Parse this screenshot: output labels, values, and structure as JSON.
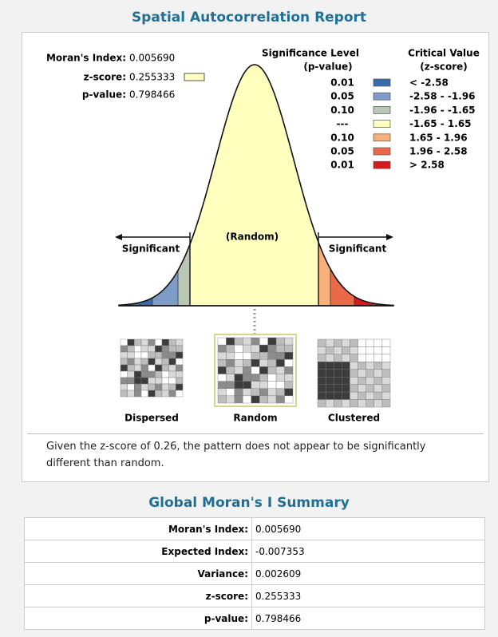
{
  "header": {
    "title": "Spatial Autocorrelation Report"
  },
  "stats": [
    {
      "label": "Moran's Index:",
      "value": "0.005690"
    },
    {
      "label": "z-score:",
      "value": "0.255333"
    },
    {
      "label": "p-value:",
      "value": "0.798466"
    }
  ],
  "legend": {
    "p_header": [
      "Significance Level",
      "(p-value)"
    ],
    "z_header": [
      "Critical Value",
      "(z-score)"
    ],
    "rows": [
      {
        "p": "0.01",
        "z": "< -2.58",
        "color": "#3a6bb0"
      },
      {
        "p": "0.05",
        "z": "-2.58 - -1.96",
        "color": "#7f9cc8"
      },
      {
        "p": "0.10",
        "z": "-1.96 - -1.65",
        "color": "#b8c8b4"
      },
      {
        "p": "---",
        "z": "-1.65 - 1.65",
        "color": "#ffffbe"
      },
      {
        "p": "0.10",
        "z": "1.65 - 1.96",
        "color": "#f7b07a"
      },
      {
        "p": "0.05",
        "z": "1.96 - 2.58",
        "color": "#ea6a48"
      },
      {
        "p": "0.01",
        "z": "> 2.58",
        "color": "#d7191c"
      }
    ]
  },
  "curve": {
    "left": "Significant",
    "center": "(Random)",
    "right": "Significant"
  },
  "maps": [
    "Dispersed",
    "Random",
    "Clustered"
  ],
  "conclusion": "Given the z-score of  0.26,  the pattern does not appear to be significantly different than random.",
  "summary": {
    "title": "Global Moran's I Summary",
    "rows": [
      [
        "Moran's Index:",
        "0.005690"
      ],
      [
        "Expected Index:",
        "-0.007353"
      ],
      [
        "Variance:",
        "0.002609"
      ],
      [
        "z-score:",
        "0.255333"
      ],
      [
        "p-value:",
        "0.798466"
      ]
    ]
  }
}
